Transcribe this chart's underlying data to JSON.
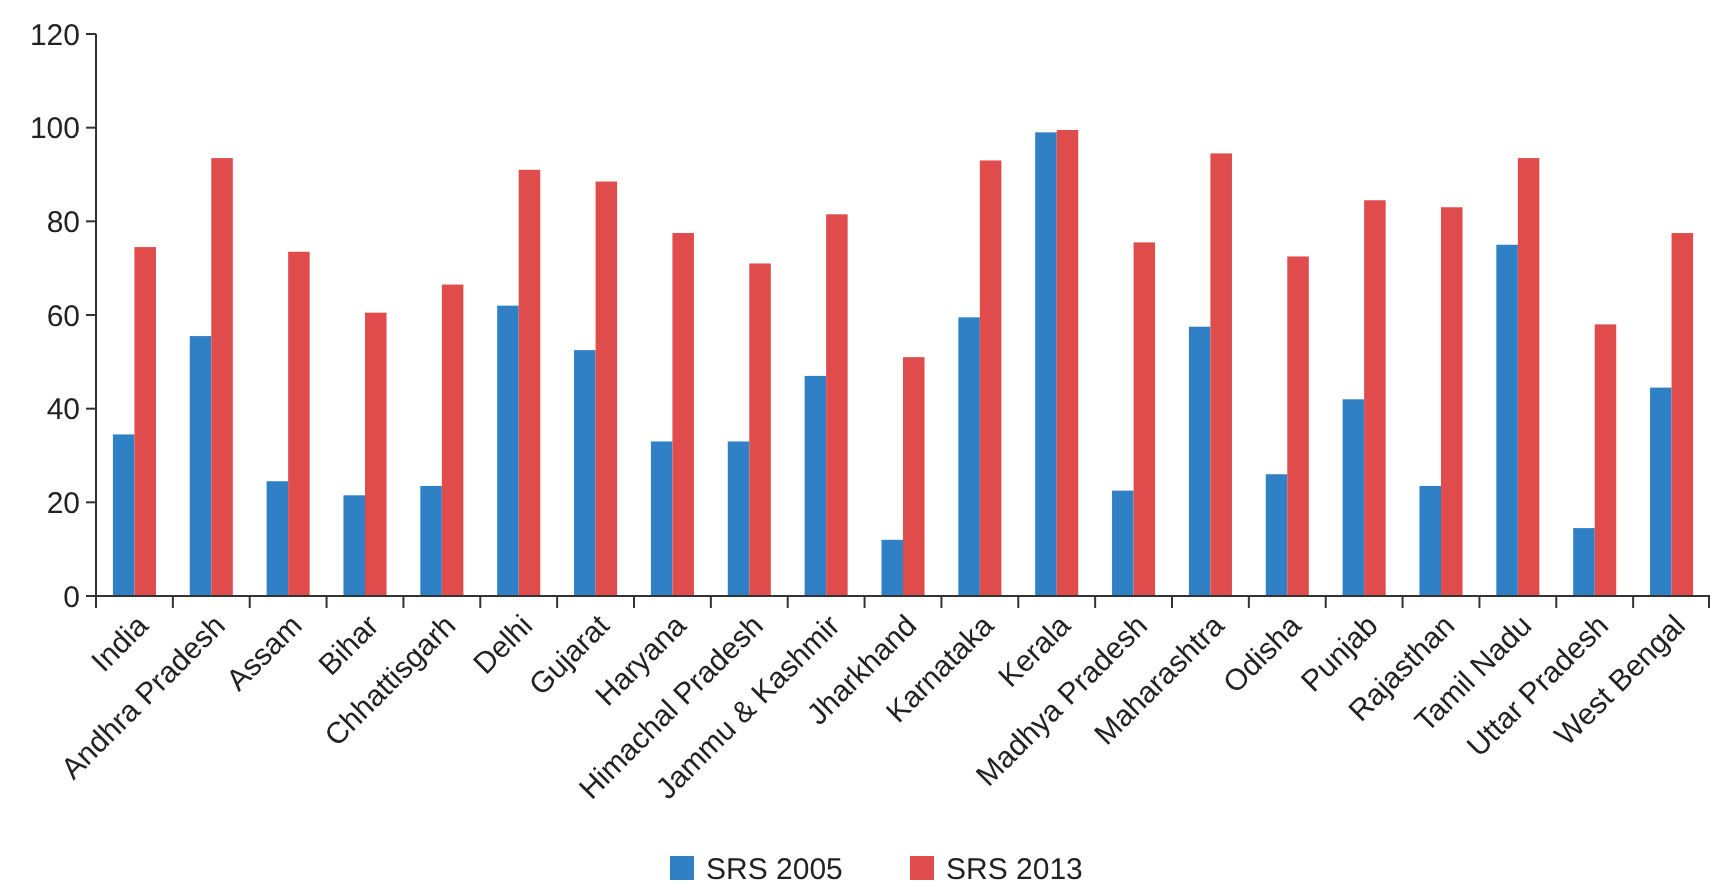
{
  "chart_data": {
    "type": "bar",
    "categories": [
      "India",
      "Andhra Pradesh",
      "Assam",
      "Bihar",
      "Chhattisgarh",
      "Delhi",
      "Gujarat",
      "Haryana",
      "Himachal Pradesh",
      "Jammu & Kashmir",
      "Jharkhand",
      "Karnataka",
      "Kerala",
      "Madhya Pradesh",
      "Maharashtra",
      "Odisha",
      "Punjab",
      "Rajasthan",
      "Tamil Nadu",
      "Uttar Pradesh",
      "West Bengal"
    ],
    "series": [
      {
        "name": "SRS 2005",
        "color": "#2f80c4",
        "values": [
          34.5,
          55.5,
          24.5,
          21.5,
          23.5,
          62,
          52.5,
          33,
          33,
          47,
          12,
          59.5,
          99,
          22.5,
          57.5,
          26,
          42,
          23.5,
          75,
          14.5,
          44.5
        ]
      },
      {
        "name": "SRS 2013",
        "color": "#e04b4b",
        "values": [
          74.5,
          93.5,
          73.5,
          60.5,
          66.5,
          91,
          88.5,
          77.5,
          71,
          81.5,
          51,
          93,
          99.5,
          75.5,
          94.5,
          72.5,
          84.5,
          83,
          93.5,
          58,
          77.5
        ]
      }
    ],
    "ylim": [
      0,
      120
    ],
    "yticks": [
      0,
      20,
      40,
      60,
      80,
      100,
      120
    ],
    "grid": false,
    "legend": "bottom"
  }
}
